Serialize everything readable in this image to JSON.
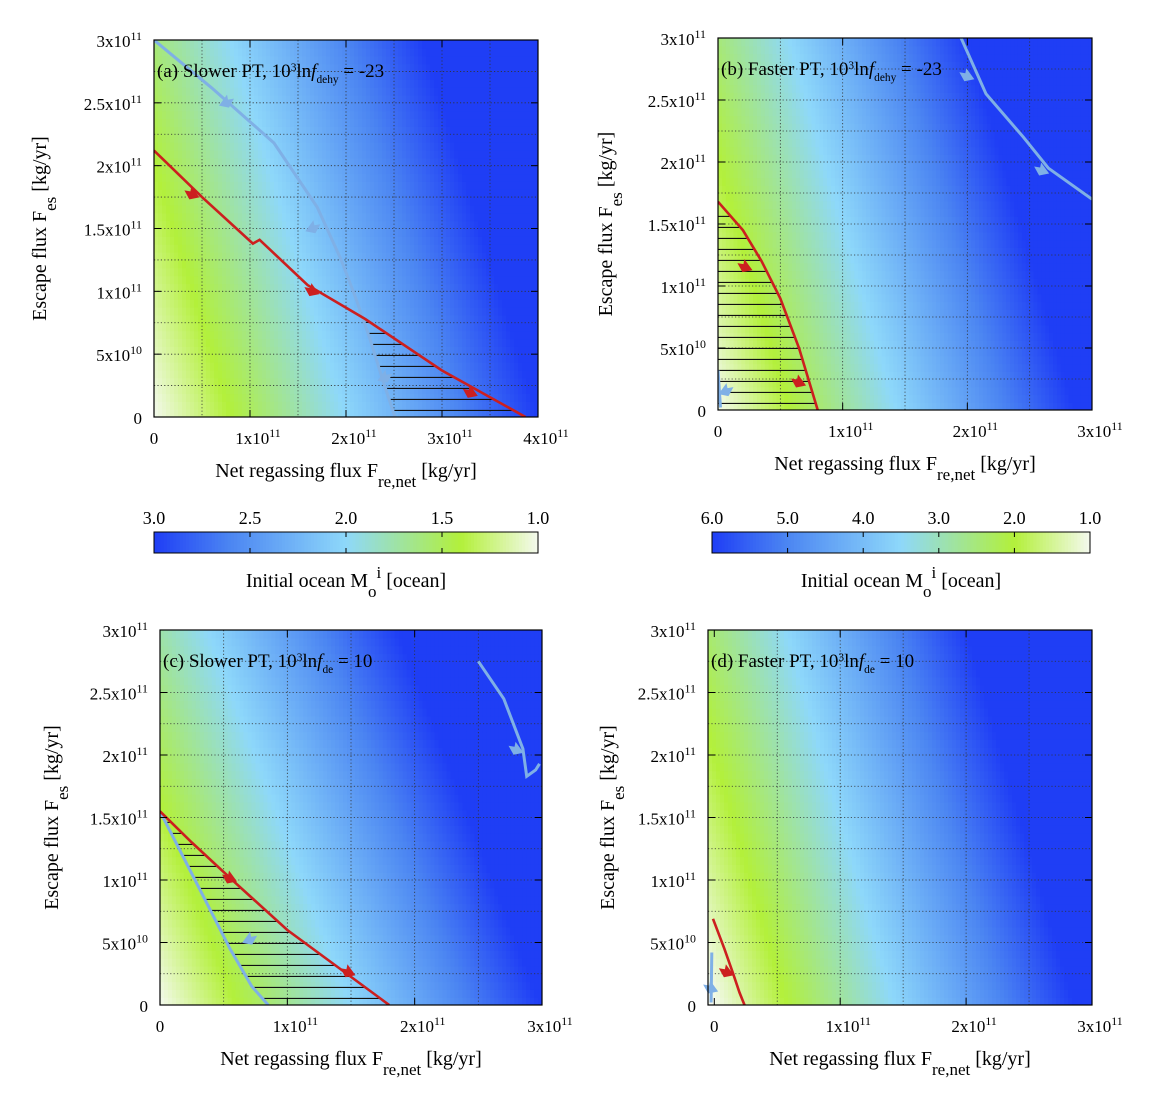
{
  "colors": {
    "low_ocean": "#f4f9ee",
    "green": "#b3f03a",
    "light_blue": "#8ed8fa",
    "blue": "#4c86f2",
    "deep_blue": "#1f3ef5",
    "red_curve": "#cc1f1f",
    "blue_curve": "#7fb0e6",
    "grid": "#333333"
  },
  "chart_data": [
    {
      "id": "a",
      "type": "heatmap",
      "title_prefix": "(a) Slower PT, 10",
      "title_exp": "3",
      "title_mid": "ln",
      "title_f": "f",
      "title_sub": "dehy",
      "title_suffix": " = -23",
      "xlabel": "Net regassing flux F",
      "xlabel_sub": "re,net",
      "xlabel_unit": "  [kg/yr]",
      "ylabel": "Escape flux F",
      "ylabel_sub": "es",
      "ylabel_unit": "  [kg/yr]",
      "xlim": [
        0,
        400000000000.0
      ],
      "ylim": [
        0,
        300000000000.0
      ],
      "xticks": [
        {
          "v": 0,
          "m": "0",
          "e": ""
        },
        {
          "v": 100000000000.0,
          "m": "1x10",
          "e": "11"
        },
        {
          "v": 200000000000.0,
          "m": "2x10",
          "e": "11"
        },
        {
          "v": 300000000000.0,
          "m": "3x10",
          "e": "11"
        },
        {
          "v": 400000000000.0,
          "m": "4x10",
          "e": "11"
        }
      ],
      "yticks": [
        {
          "v": 0,
          "m": "0",
          "e": ""
        },
        {
          "v": 50000000000.0,
          "m": "5x10",
          "e": "10"
        },
        {
          "v": 100000000000.0,
          "m": "1x10",
          "e": "11"
        },
        {
          "v": 150000000000.0,
          "m": "1.5x10",
          "e": "11"
        },
        {
          "v": 200000000000.0,
          "m": "2x10",
          "e": "11"
        },
        {
          "v": 250000000000.0,
          "m": "2.5x10",
          "e": "11"
        },
        {
          "v": 300000000000.0,
          "m": "3x10",
          "e": "11"
        }
      ],
      "xgrid": [
        50000000000.0,
        100000000000.0,
        150000000000.0,
        200000000000.0,
        250000000000.0,
        300000000000.0,
        350000000000.0
      ],
      "ygrid": [
        25000000000.0,
        50000000000.0,
        75000000000.0,
        100000000000.0,
        125000000000.0,
        150000000000.0,
        175000000000.0,
        200000000000.0,
        225000000000.0,
        250000000000.0,
        275000000000.0
      ],
      "colorscale": {
        "min": 1.0,
        "max": 3.0
      },
      "ocean_field": {
        "base": 1.0,
        "per_x": 5e-12,
        "per_y": 2e-12
      },
      "red_curve": [
        [
          0,
          212000000000.0
        ],
        [
          50000000000.0,
          175000000000.0
        ],
        [
          103000000000.0,
          138000000000.0
        ],
        [
          110000000000.0,
          141000000000.0
        ],
        [
          160000000000.0,
          105000000000.0
        ],
        [
          220000000000.0,
          78000000000.0
        ],
        [
          300000000000.0,
          37000000000.0
        ],
        [
          387000000000.0,
          0
        ]
      ],
      "blue_curve": [
        [
          0,
          300000000000.0
        ],
        [
          60000000000.0,
          262000000000.0
        ],
        [
          125000000000.0,
          218000000000.0
        ],
        [
          170000000000.0,
          167000000000.0
        ],
        [
          195000000000.0,
          125000000000.0
        ],
        [
          210000000000.0,
          95000000000.0
        ],
        [
          225000000000.0,
          62000000000.0
        ],
        [
          238000000000.0,
          30000000000.0
        ],
        [
          251000000000.0,
          0
        ]
      ],
      "hatch": {
        "left": [
          [
            251000000000.0,
            0
          ],
          [
            238000000000.0,
            30000000000.0
          ],
          [
            225000000000.0,
            62000000000.0
          ],
          [
            215000000000.0,
            85000000000.0
          ]
        ],
        "right": [
          [
            387000000000.0,
            0
          ],
          [
            300000000000.0,
            37000000000.0
          ],
          [
            220000000000.0,
            78000000000.0
          ],
          [
            215000000000.0,
            85000000000.0
          ]
        ],
        "y_top": 85000000000.0
      },
      "red_arrows": [
        [
          40000000000.0,
          178000000000.0,
          -1
        ],
        [
          165000000000.0,
          101000000000.0,
          -1
        ],
        [
          330000000000.0,
          20000000000.0,
          -1
        ]
      ],
      "blue_arrows": [
        [
          75000000000.0,
          251000000000.0,
          1
        ],
        [
          165000000000.0,
          151000000000.0,
          1
        ],
        [
          240000000000.0,
          32000000000.0,
          1
        ]
      ]
    },
    {
      "id": "b",
      "type": "heatmap",
      "title_prefix": "(b) Faster PT, 10",
      "title_exp": "3",
      "title_mid": "ln",
      "title_f": "f",
      "title_sub": "dehy",
      "title_suffix": " = -23",
      "xlabel": "Net regassing flux F",
      "xlabel_sub": "re,net",
      "xlabel_unit": "  [kg/yr]",
      "ylabel": "Escape flux F",
      "ylabel_sub": "es",
      "ylabel_unit": "  [kg/yr]",
      "xlim": [
        0,
        300000000000.0
      ],
      "ylim": [
        0,
        300000000000.0
      ],
      "xticks": [
        {
          "v": 0,
          "m": "0",
          "e": ""
        },
        {
          "v": 100000000000.0,
          "m": "1x10",
          "e": "11"
        },
        {
          "v": 200000000000.0,
          "m": "2x10",
          "e": "11"
        },
        {
          "v": 300000000000.0,
          "m": "3x10",
          "e": "11"
        }
      ],
      "yticks": [
        {
          "v": 0,
          "m": "0",
          "e": ""
        },
        {
          "v": 50000000000.0,
          "m": "5x10",
          "e": "10"
        },
        {
          "v": 100000000000.0,
          "m": "1x10",
          "e": "11"
        },
        {
          "v": 150000000000.0,
          "m": "1.5x10",
          "e": "11"
        },
        {
          "v": 200000000000.0,
          "m": "2x10",
          "e": "11"
        },
        {
          "v": 250000000000.0,
          "m": "2.5x10",
          "e": "11"
        },
        {
          "v": 300000000000.0,
          "m": "3x10",
          "e": "11"
        }
      ],
      "xgrid": [
        50000000000.0,
        100000000000.0,
        150000000000.0,
        200000000000.0,
        250000000000.0
      ],
      "ygrid": [
        25000000000.0,
        50000000000.0,
        75000000000.0,
        100000000000.0,
        125000000000.0,
        150000000000.0,
        175000000000.0,
        200000000000.0,
        225000000000.0,
        250000000000.0,
        275000000000.0
      ],
      "colorscale": {
        "min": 1.0,
        "max": 6.0
      },
      "ocean_field": {
        "base": 1.0,
        "per_x": 1.75e-11,
        "per_y": 5e-12
      },
      "red_curve": [
        [
          0,
          168000000000.0
        ],
        [
          20000000000.0,
          145000000000.0
        ],
        [
          35000000000.0,
          120000000000.0
        ],
        [
          50000000000.0,
          90000000000.0
        ],
        [
          65000000000.0,
          50000000000.0
        ],
        [
          80000000000.0,
          0
        ]
      ],
      "blue_curve": [
        [
          195000000000.0,
          300000000000.0
        ],
        [
          215000000000.0,
          255000000000.0
        ],
        [
          245000000000.0,
          220000000000.0
        ],
        [
          265000000000.0,
          195000000000.0
        ],
        [
          300000000000.0,
          170000000000.0
        ]
      ],
      "blue_curve2": [
        [
          0,
          32000000000.0
        ],
        [
          2000000000.0,
          2000000000.0
        ]
      ],
      "hatch": {
        "left": [
          [
            0,
            0
          ],
          [
            0,
            168000000000.0
          ]
        ],
        "right": [
          [
            80000000000.0,
            0
          ],
          [
            65000000000.0,
            50000000000.0
          ],
          [
            50000000000.0,
            90000000000.0
          ],
          [
            35000000000.0,
            120000000000.0
          ],
          [
            20000000000.0,
            145000000000.0
          ],
          [
            0,
            168000000000.0
          ]
        ],
        "y_top": 160000000000.0
      },
      "red_arrows": [
        [
          22000000000.0,
          116000000000.0,
          -1
        ],
        [
          65000000000.0,
          23000000000.0,
          -1
        ]
      ],
      "blue_arrows": [
        [
          200000000000.0,
          270000000000.0,
          -1
        ],
        [
          260000000000.0,
          194000000000.0,
          -1
        ],
        [
          6000000000.0,
          16000000000.0,
          1
        ]
      ]
    },
    {
      "id": "c",
      "type": "heatmap",
      "title_prefix": "(c) Slower PT, 10",
      "title_exp": "3",
      "title_mid": "ln",
      "title_f": "f",
      "title_sub": "de",
      "title_suffix": " = 10",
      "xlabel": "Net regassing flux F",
      "xlabel_sub": "re,net",
      "xlabel_unit": "  [kg/yr]",
      "ylabel": "Escape flux F",
      "ylabel_sub": "es",
      "ylabel_unit": "  [kg/yr]",
      "xlim": [
        0,
        300000000000.0
      ],
      "ylim": [
        0,
        300000000000.0
      ],
      "xticks": [
        {
          "v": 0,
          "m": "0",
          "e": ""
        },
        {
          "v": 100000000000.0,
          "m": "1x10",
          "e": "11"
        },
        {
          "v": 200000000000.0,
          "m": "2x10",
          "e": "11"
        },
        {
          "v": 300000000000.0,
          "m": "3x10",
          "e": "11"
        }
      ],
      "yticks": [
        {
          "v": 0,
          "m": "0",
          "e": ""
        },
        {
          "v": 50000000000.0,
          "m": "5x10",
          "e": "10"
        },
        {
          "v": 100000000000.0,
          "m": "1x10",
          "e": "11"
        },
        {
          "v": 150000000000.0,
          "m": "1.5x10",
          "e": "11"
        },
        {
          "v": 200000000000.0,
          "m": "2x10",
          "e": "11"
        },
        {
          "v": 250000000000.0,
          "m": "2.5x10",
          "e": "11"
        },
        {
          "v": 300000000000.0,
          "m": "3x10",
          "e": "11"
        }
      ],
      "xgrid": [
        50000000000.0,
        100000000000.0,
        150000000000.0,
        200000000000.0,
        250000000000.0
      ],
      "ygrid": [
        25000000000.0,
        50000000000.0,
        75000000000.0,
        100000000000.0,
        125000000000.0,
        150000000000.0,
        175000000000.0,
        200000000000.0,
        225000000000.0,
        250000000000.0,
        275000000000.0
      ],
      "colorscale": {
        "min": 1.0,
        "max": 3.0
      },
      "ocean_field": {
        "base": 1.0,
        "per_x": 6.7e-12,
        "per_y": 2.5e-12
      },
      "red_curve": [
        [
          0,
          155000000000.0
        ],
        [
          25000000000.0,
          130000000000.0
        ],
        [
          60000000000.0,
          97000000000.0
        ],
        [
          100000000000.0,
          60000000000.0
        ],
        [
          140000000000.0,
          30000000000.0
        ],
        [
          180000000000.0,
          0
        ]
      ],
      "blue_curve": [
        [
          0,
          155000000000.0
        ],
        [
          15000000000.0,
          125000000000.0
        ],
        [
          35000000000.0,
          85000000000.0
        ],
        [
          55000000000.0,
          45000000000.0
        ],
        [
          72000000000.0,
          15000000000.0
        ],
        [
          85000000000.0,
          0
        ]
      ],
      "blue_curve2": [
        [
          250000000000.0,
          275000000000.0
        ],
        [
          270000000000.0,
          245000000000.0
        ],
        [
          285000000000.0,
          205000000000.0
        ],
        [
          288000000000.0,
          183000000000.0
        ],
        [
          295000000000.0,
          188000000000.0
        ],
        [
          298000000000.0,
          193000000000.0
        ]
      ],
      "hatch": {
        "left": [
          [
            85000000000.0,
            0
          ],
          [
            72000000000.0,
            15000000000.0
          ],
          [
            55000000000.0,
            45000000000.0
          ],
          [
            35000000000.0,
            85000000000.0
          ],
          [
            15000000000.0,
            125000000000.0
          ],
          [
            0,
            155000000000.0
          ]
        ],
        "right": [
          [
            180000000000.0,
            0
          ],
          [
            140000000000.0,
            30000000000.0
          ],
          [
            100000000000.0,
            60000000000.0
          ],
          [
            60000000000.0,
            97000000000.0
          ],
          [
            25000000000.0,
            130000000000.0
          ],
          [
            0,
            155000000000.0
          ]
        ],
        "y_top": 150000000000.0
      },
      "red_arrows": [
        [
          55000000000.0,
          102000000000.0,
          -1
        ],
        [
          148000000000.0,
          27000000000.0,
          -1
        ]
      ],
      "blue_arrows": [
        [
          70000000000.0,
          53000000000.0,
          1
        ],
        [
          280000000000.0,
          205000000000.0,
          -1
        ]
      ]
    },
    {
      "id": "d",
      "type": "heatmap",
      "title_prefix": "(d) Faster PT, 10",
      "title_exp": "3",
      "title_mid": "ln",
      "title_f": "f",
      "title_sub": "de",
      "title_suffix": " = 10",
      "xlabel": "Net regassing flux F",
      "xlabel_sub": "re,net",
      "xlabel_unit": "  [kg/yr]",
      "ylabel": "Escape flux F",
      "ylabel_sub": "es",
      "ylabel_unit": "  [kg/yr]",
      "xlim": [
        -5000000000.0,
        300000000000.0
      ],
      "ylim": [
        0,
        300000000000.0
      ],
      "xticks": [
        {
          "v": 0,
          "m": "0",
          "e": ""
        },
        {
          "v": 100000000000.0,
          "m": "1x10",
          "e": "11"
        },
        {
          "v": 200000000000.0,
          "m": "2x10",
          "e": "11"
        },
        {
          "v": 300000000000.0,
          "m": "3x10",
          "e": "11"
        }
      ],
      "yticks": [
        {
          "v": 0,
          "m": "0",
          "e": ""
        },
        {
          "v": 50000000000.0,
          "m": "5x10",
          "e": "10"
        },
        {
          "v": 100000000000.0,
          "m": "1x10",
          "e": "11"
        },
        {
          "v": 150000000000.0,
          "m": "1.5x10",
          "e": "11"
        },
        {
          "v": 200000000000.0,
          "m": "2x10",
          "e": "11"
        },
        {
          "v": 250000000000.0,
          "m": "2.5x10",
          "e": "11"
        },
        {
          "v": 300000000000.0,
          "m": "3x10",
          "e": "11"
        }
      ],
      "xgrid": [
        50000000000.0,
        100000000000.0,
        150000000000.0,
        200000000000.0,
        250000000000.0
      ],
      "ygrid": [
        25000000000.0,
        50000000000.0,
        75000000000.0,
        100000000000.0,
        125000000000.0,
        150000000000.0,
        175000000000.0,
        200000000000.0,
        225000000000.0,
        250000000000.0,
        275000000000.0
      ],
      "colorscale": {
        "min": 1.0,
        "max": 6.0
      },
      "ocean_field": {
        "base": 1.0,
        "per_x": 1.75e-11,
        "per_y": 5e-12
      },
      "red_curve": [
        [
          -1000000000.0,
          69000000000.0
        ],
        [
          8000000000.0,
          45000000000.0
        ],
        [
          15000000000.0,
          25000000000.0
        ],
        [
          20000000000.0,
          10000000000.0
        ],
        [
          24000000000.0,
          0
        ]
      ],
      "blue_curve": [
        [
          -2000000000.0,
          42000000000.0
        ],
        [
          -2500000000.0,
          2000000000.0
        ]
      ],
      "hatch": null,
      "red_arrows": [
        [
          10000000000.0,
          27000000000.0,
          -1
        ]
      ],
      "blue_arrows": [
        [
          -2500000000.0,
          14000000000.0,
          -1
        ]
      ]
    }
  ],
  "colorbars": [
    {
      "id": "left",
      "min": 1.0,
      "max": 3.0,
      "tick_labels": [
        "3.0",
        "2.5",
        "2.0",
        "1.5",
        "1.0"
      ],
      "tick_values": [
        3.0,
        2.5,
        2.0,
        1.5,
        1.0
      ],
      "title": "Initial ocean M",
      "title_sub": "o",
      "title_sup": "i",
      "title_unit": " [ocean]"
    },
    {
      "id": "right",
      "min": 1.0,
      "max": 6.0,
      "tick_labels": [
        "6.0",
        "5.0",
        "4.0",
        "3.0",
        "2.0",
        "1.0"
      ],
      "tick_values": [
        6.0,
        5.0,
        4.0,
        3.0,
        2.0,
        1.0
      ],
      "title": "Initial ocean M",
      "title_sub": "o",
      "title_sup": "i",
      "title_unit": " [ocean]"
    }
  ]
}
